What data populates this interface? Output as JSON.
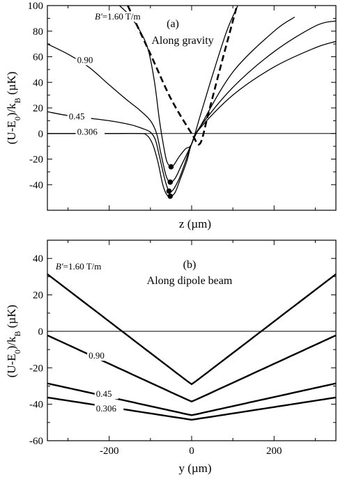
{
  "chart_data": [
    {
      "type": "line",
      "panel_label": "(a)",
      "annotation": "Along gravity",
      "xlabel": "z (µm)",
      "ylabel_parts": [
        "(U-E",
        "0",
        ")/k",
        "B",
        " (µK)"
      ],
      "xlim": [
        -350,
        350
      ],
      "ylim": [
        -60,
        100
      ],
      "yticks": [
        -40,
        -20,
        0,
        20,
        40,
        60,
        80,
        100
      ],
      "xticks_shown": false,
      "grid": false,
      "zero_line": true,
      "series": [
        {
          "label": "B′=1.60 T/m",
          "style": "solid",
          "points": [
            [
              -175,
              100
            ],
            [
              -150,
              92
            ],
            [
              -125,
              80
            ],
            [
              -105,
              65
            ],
            [
              -90,
              40
            ],
            [
              -78,
              10
            ],
            [
              -68,
              -10
            ],
            [
              -60,
              -22
            ],
            [
              -50,
              -26
            ],
            [
              -42,
              -24
            ],
            [
              -30,
              -18
            ],
            [
              -15,
              -12
            ],
            [
              0,
              -8
            ],
            [
              20,
              13
            ],
            [
              50,
              45
            ],
            [
              85,
              80
            ],
            [
              112,
              100
            ]
          ]
        },
        {
          "label": "0.90",
          "style": "solid",
          "points": [
            [
              -350,
              70
            ],
            [
              -300,
              62
            ],
            [
              -250,
              52
            ],
            [
              -200,
              38
            ],
            [
              -160,
              27
            ],
            [
              -125,
              18
            ],
            [
              -100,
              10
            ],
            [
              -85,
              0
            ],
            [
              -75,
              -15
            ],
            [
              -62,
              -33
            ],
            [
              -52,
              -38
            ],
            [
              -40,
              -35
            ],
            [
              -25,
              -25
            ],
            [
              -10,
              -15
            ],
            [
              0,
              -8
            ],
            [
              20,
              5
            ],
            [
              100,
              48
            ],
            [
              200,
              80
            ],
            [
              250,
              91
            ]
          ]
        },
        {
          "label": "0.45",
          "style": "solid",
          "points": [
            [
              -350,
              17
            ],
            [
              -300,
              14
            ],
            [
              -250,
              12
            ],
            [
              -200,
              10
            ],
            [
              -150,
              7
            ],
            [
              -120,
              4
            ],
            [
              -100,
              1
            ],
            [
              -88,
              -5
            ],
            [
              -78,
              -18
            ],
            [
              -65,
              -36
            ],
            [
              -55,
              -45
            ],
            [
              -45,
              -44
            ],
            [
              -30,
              -35
            ],
            [
              -15,
              -22
            ],
            [
              0,
              -8
            ],
            [
              20,
              5
            ],
            [
              100,
              36
            ],
            [
              200,
              64
            ],
            [
              300,
              84
            ],
            [
              350,
              88
            ]
          ]
        },
        {
          "label": "0.306",
          "style": "solid",
          "points": [
            [
              -350,
              0
            ],
            [
              -200,
              0
            ],
            [
              -130,
              0
            ],
            [
              -110,
              -1
            ],
            [
              -95,
              -8
            ],
            [
              -82,
              -22
            ],
            [
              -70,
              -40
            ],
            [
              -60,
              -48
            ],
            [
              -50,
              -49
            ],
            [
              -40,
              -46
            ],
            [
              -28,
              -36
            ],
            [
              -12,
              -22
            ],
            [
              0,
              -8
            ],
            [
              20,
              4
            ],
            [
              100,
              30
            ],
            [
              200,
              52
            ],
            [
              300,
              67
            ],
            [
              350,
              72
            ]
          ]
        },
        {
          "label": "",
          "style": "dashed",
          "points": [
            [
              -155,
              100
            ],
            [
              -100,
              62
            ],
            [
              -50,
              27
            ],
            [
              0,
              0
            ],
            [
              20,
              -8
            ],
            [
              40,
              15
            ],
            [
              70,
              52
            ],
            [
              110,
              100
            ]
          ]
        }
      ],
      "minima": [
        [
          -50,
          -26
        ],
        [
          -52,
          -38
        ],
        [
          -55,
          -45
        ],
        [
          -52,
          -49
        ]
      ],
      "curve_labels": [
        {
          "text_parts": [
            "B′",
            "=1.60 T/m"
          ],
          "at": [
            -235,
            89
          ]
        },
        {
          "text": "0.90",
          "at": [
            -278,
            55
          ]
        },
        {
          "text": "0.45",
          "at": [
            -298,
            11
          ]
        },
        {
          "text": "0.306",
          "at": [
            -278,
            -1
          ]
        }
      ]
    },
    {
      "type": "line",
      "panel_label": "(b)",
      "annotation": "Along dipole beam",
      "xlabel": "y (µm)",
      "ylabel_parts": [
        "(U-E",
        "0",
        ")/k",
        "B",
        " (µK)"
      ],
      "xlim": [
        -350,
        350
      ],
      "ylim": [
        -60,
        50
      ],
      "xticks": [
        -200,
        0,
        200
      ],
      "yticks": [
        -60,
        -40,
        -20,
        0,
        20,
        40
      ],
      "grid": false,
      "zero_line": true,
      "series": [
        {
          "label": "B′=1.60 T/m",
          "min": -29,
          "end": 44,
          "edge_slope": 0.173
        },
        {
          "label": "0.90",
          "min": -38.5,
          "end": 0.5,
          "edge_slope": 0.104
        },
        {
          "label": "0.45",
          "min": -46,
          "end": -27,
          "edge_slope": 0.05
        },
        {
          "label": "0.306",
          "min": -48.5,
          "end": -35.5,
          "edge_slope": 0.035
        }
      ],
      "curve_labels": [
        {
          "text_parts": [
            "B′",
            "=1.60 T/m"
          ],
          "at": [
            -330,
            34
          ]
        },
        {
          "text": "0.90",
          "at": [
            -250,
            -15
          ]
        },
        {
          "text": "0.45",
          "at": [
            -232,
            -36
          ]
        },
        {
          "text": "0.306",
          "at": [
            -232,
            -44
          ]
        }
      ]
    }
  ]
}
